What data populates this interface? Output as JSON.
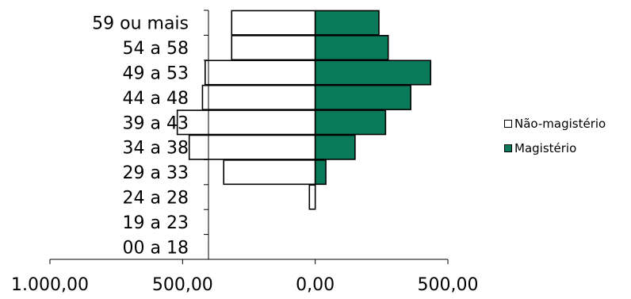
{
  "chart_data": {
    "type": "bar",
    "orientation": "horizontal",
    "categories": [
      "59 ou mais",
      "54 a 58",
      "49 a 53",
      "44 a 48",
      "39 a 43",
      "34 a 38",
      "29 a 33",
      "24 a 28",
      "19 a 23",
      "00 a 18"
    ],
    "series": [
      {
        "name": "Não-magistério",
        "color": "#ffffff",
        "values": [
          -315,
          -315,
          -415,
          -425,
          -520,
          -475,
          -345,
          -22,
          0,
          0
        ]
      },
      {
        "name": "Magistério",
        "color": "#0b7a5a",
        "values": [
          240,
          275,
          435,
          360,
          265,
          150,
          40,
          0,
          0,
          0
        ]
      }
    ],
    "xlim": [
      -1000,
      500
    ],
    "xticks": [
      -1000,
      -500,
      0,
      500
    ],
    "xtick_labels": [
      "1.000,00",
      "500,00",
      "0,00",
      "500,00"
    ],
    "title": "",
    "xlabel": "",
    "ylabel": "",
    "legend_position": "right"
  }
}
